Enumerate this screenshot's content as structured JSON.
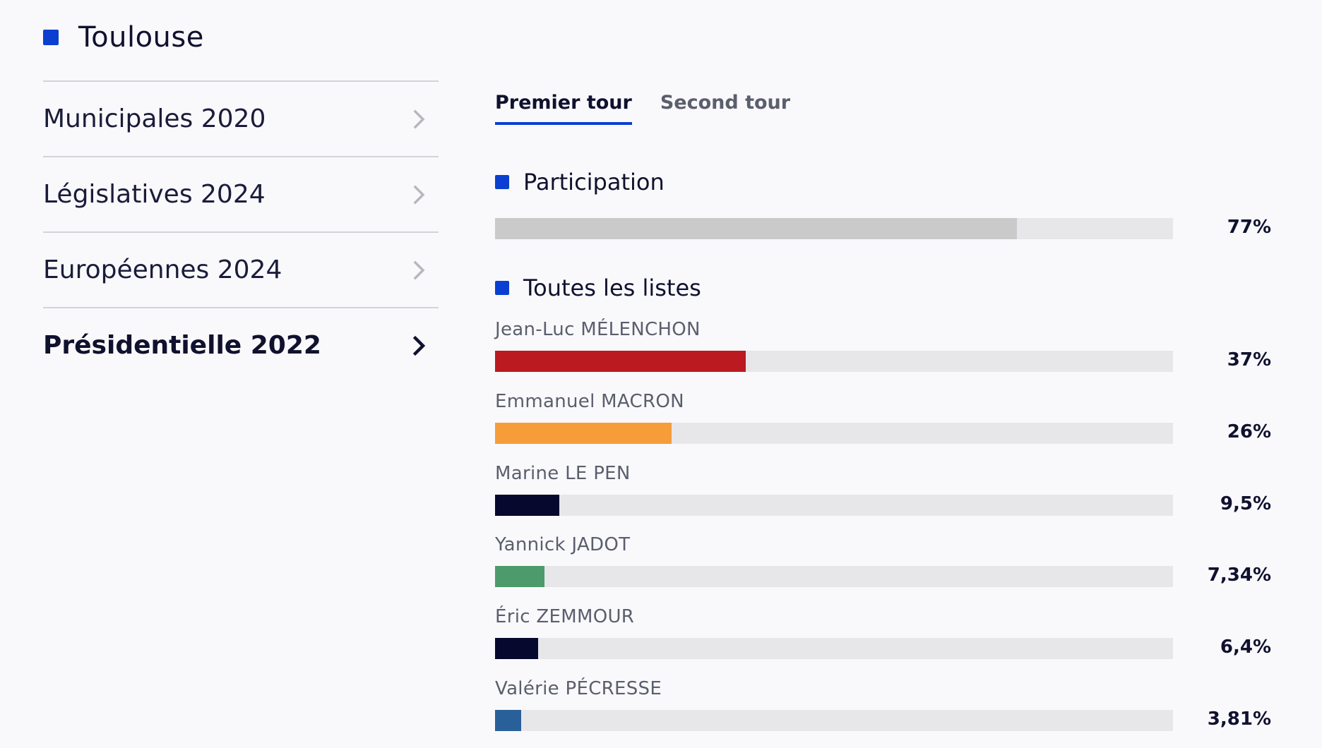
{
  "city": {
    "name": "Toulouse"
  },
  "elections": [
    {
      "label": "Municipales 2020",
      "active": false
    },
    {
      "label": "Législatives 2024",
      "active": false
    },
    {
      "label": "Européennes 2024",
      "active": false
    },
    {
      "label": "Présidentielle 2022",
      "active": true
    }
  ],
  "tabs": [
    {
      "label": "Premier tour",
      "active": true
    },
    {
      "label": "Second tour",
      "active": false
    }
  ],
  "colors": {
    "accent": "#0a3fd1",
    "participation": "#cacaca",
    "track": "#e7e7ea"
  },
  "participation": {
    "title": "Participation",
    "value": 77,
    "label": "77%"
  },
  "results": {
    "title": "Toutes les listes"
  },
  "chart_data": {
    "type": "bar",
    "orientation": "horizontal",
    "xlim": [
      0,
      100
    ],
    "categories": [
      "Jean-Luc MÉLENCHON",
      "Emmanuel MACRON",
      "Marine LE PEN",
      "Yannick JADOT",
      "Éric ZEMMOUR",
      "Valérie PÉCRESSE"
    ],
    "values": [
      37,
      26,
      9.5,
      7.34,
      6.4,
      3.81
    ],
    "value_labels": [
      "37%",
      "26%",
      "9,5%",
      "7,34%",
      "6,4%",
      "3,81%"
    ],
    "colors": [
      "#bb1a21",
      "#f69d3a",
      "#06082e",
      "#4d9a6d",
      "#06082e",
      "#2a609a"
    ]
  }
}
